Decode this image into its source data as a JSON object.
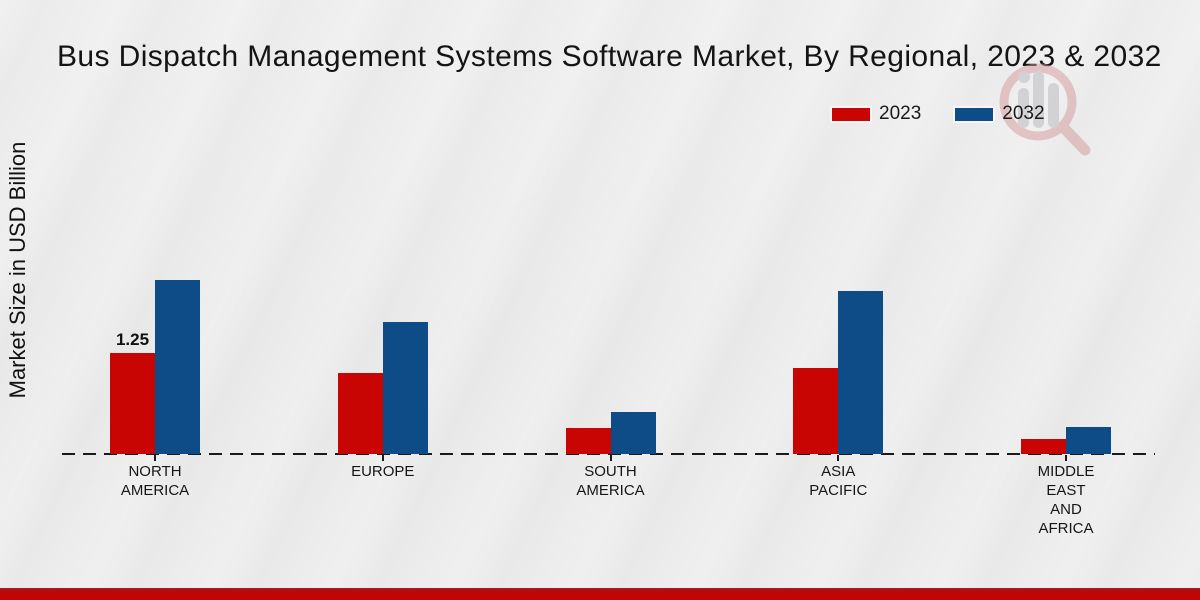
{
  "title": "Bus Dispatch Management Systems Software Market, By Regional, 2023 & 2032",
  "y_axis_label": "Market Size in USD Billion",
  "legend": [
    {
      "label": "2023",
      "color": "#c80502"
    },
    {
      "label": "2032",
      "color": "#0e4c87"
    }
  ],
  "colors": {
    "bar_2023": "#c80502",
    "bar_2032": "#0e4c87",
    "axis_line": "#1a1a1a",
    "footer_accent": "#c40303",
    "background": "#e9e9e9"
  },
  "watermark_icon": "market-research-magnifier-logo",
  "chart_data": {
    "type": "bar",
    "title": "Bus Dispatch Management Systems Software Market, By Regional, 2023 & 2032",
    "xlabel": "",
    "ylabel": "Market Size in USD Billion",
    "ylim": [
      0,
      2.5
    ],
    "grid": false,
    "legend_position": "top-right",
    "axis_style": "dashed-baseline-only",
    "categories": [
      "NORTH\nAMERICA",
      "EUROPE",
      "SOUTH\nAMERICA",
      "ASIA\nPACIFIC",
      "MIDDLE\nEAST\nAND\nAFRICA"
    ],
    "series": [
      {
        "name": "2023",
        "color": "#c80502",
        "values": [
          1.25,
          1.0,
          0.32,
          1.06,
          0.19
        ],
        "labels": [
          "1.25",
          "",
          "",
          "",
          ""
        ]
      },
      {
        "name": "2032",
        "color": "#0e4c87",
        "values": [
          2.15,
          1.63,
          0.52,
          2.02,
          0.33
        ],
        "labels": [
          "",
          "",
          "",
          "",
          ""
        ]
      }
    ]
  }
}
